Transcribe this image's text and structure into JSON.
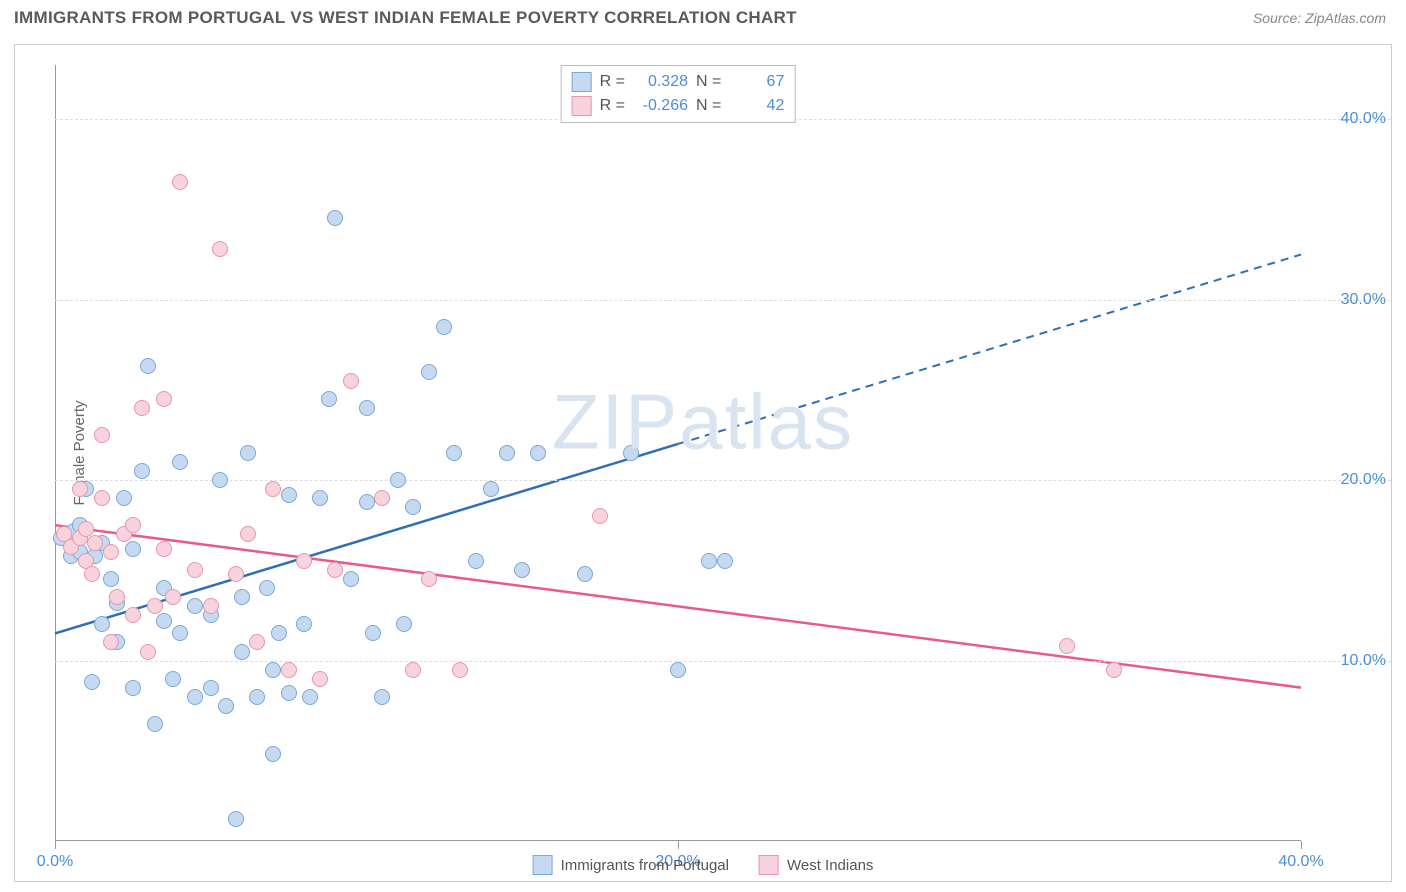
{
  "header": {
    "title": "IMMIGRANTS FROM PORTUGAL VS WEST INDIAN FEMALE POVERTY CORRELATION CHART",
    "source_label": "Source: ",
    "source_value": "ZipAtlas.com"
  },
  "watermark": {
    "prefix": "ZIP",
    "suffix": "atlas"
  },
  "chart": {
    "type": "scatter",
    "y_axis_title": "Female Poverty",
    "xlim": [
      0,
      40
    ],
    "ylim": [
      0,
      43
    ],
    "x_ticks": [
      0,
      20,
      40
    ],
    "x_tick_labels": [
      "0.0%",
      "20.0%",
      "40.0%"
    ],
    "y_ticks": [
      10,
      20,
      30,
      40
    ],
    "y_tick_labels": [
      "10.0%",
      "20.0%",
      "30.0%",
      "40.0%"
    ],
    "background_color": "#ffffff",
    "grid_color": "#dddddd",
    "axis_color": "#999999",
    "tick_label_color": "#4a8fd8",
    "marker_radius": 8,
    "series": [
      {
        "id": "portugal",
        "label": "Immigrants from Portugal",
        "fill": "#c5daf0",
        "stroke": "#7aa8d8",
        "line_color": "#2f6fb5",
        "R": "0.328",
        "N": "67",
        "trend": {
          "x1": 0,
          "y1": 11.5,
          "x2": 40,
          "y2": 32.5,
          "solid_until_x": 20
        },
        "points": [
          [
            0.2,
            16.8
          ],
          [
            0.5,
            15.8
          ],
          [
            0.6,
            17.2
          ],
          [
            0.8,
            16.0
          ],
          [
            0.8,
            17.5
          ],
          [
            1.0,
            19.5
          ],
          [
            1.2,
            8.8
          ],
          [
            1.3,
            15.8
          ],
          [
            1.5,
            12.0
          ],
          [
            1.5,
            16.5
          ],
          [
            1.8,
            14.5
          ],
          [
            2.0,
            11.0
          ],
          [
            2.0,
            13.2
          ],
          [
            2.2,
            19.0
          ],
          [
            2.5,
            8.5
          ],
          [
            2.5,
            16.2
          ],
          [
            2.8,
            20.5
          ],
          [
            3.0,
            26.3
          ],
          [
            3.2,
            6.5
          ],
          [
            3.5,
            12.2
          ],
          [
            3.5,
            14.0
          ],
          [
            3.8,
            9.0
          ],
          [
            4.0,
            11.5
          ],
          [
            4.0,
            21.0
          ],
          [
            4.5,
            8.0
          ],
          [
            4.5,
            13.0
          ],
          [
            5.0,
            8.5
          ],
          [
            5.0,
            12.5
          ],
          [
            5.3,
            20.0
          ],
          [
            5.5,
            7.5
          ],
          [
            5.8,
            1.2
          ],
          [
            6.0,
            10.5
          ],
          [
            6.0,
            13.5
          ],
          [
            6.2,
            21.5
          ],
          [
            6.5,
            8.0
          ],
          [
            6.8,
            14.0
          ],
          [
            7.0,
            4.8
          ],
          [
            7.0,
            9.5
          ],
          [
            7.2,
            11.5
          ],
          [
            7.5,
            8.2
          ],
          [
            7.5,
            19.2
          ],
          [
            8.0,
            12.0
          ],
          [
            8.2,
            8.0
          ],
          [
            8.5,
            19.0
          ],
          [
            8.8,
            24.5
          ],
          [
            9.0,
            34.5
          ],
          [
            9.5,
            14.5
          ],
          [
            10.0,
            18.8
          ],
          [
            10.0,
            24.0
          ],
          [
            10.2,
            11.5
          ],
          [
            10.5,
            8.0
          ],
          [
            11.0,
            20.0
          ],
          [
            11.2,
            12.0
          ],
          [
            11.5,
            18.5
          ],
          [
            12.0,
            26.0
          ],
          [
            12.5,
            28.5
          ],
          [
            12.8,
            21.5
          ],
          [
            13.5,
            15.5
          ],
          [
            14.0,
            19.5
          ],
          [
            14.5,
            21.5
          ],
          [
            15.0,
            15.0
          ],
          [
            15.5,
            21.5
          ],
          [
            17.0,
            14.8
          ],
          [
            18.5,
            21.5
          ],
          [
            20.0,
            9.5
          ],
          [
            21.0,
            15.5
          ],
          [
            21.5,
            15.5
          ]
        ]
      },
      {
        "id": "west_indians",
        "label": "West Indians",
        "fill": "#f7d3dd",
        "stroke": "#e896ab",
        "line_color": "#e75a8e",
        "R": "-0.266",
        "N": "42",
        "trend": {
          "x1": 0,
          "y1": 17.5,
          "x2": 40,
          "y2": 8.5,
          "solid_until_x": 40
        },
        "points": [
          [
            0.3,
            17.0
          ],
          [
            0.5,
            16.3
          ],
          [
            0.8,
            16.8
          ],
          [
            0.8,
            19.5
          ],
          [
            1.0,
            15.5
          ],
          [
            1.0,
            17.3
          ],
          [
            1.2,
            14.8
          ],
          [
            1.3,
            16.5
          ],
          [
            1.5,
            19.0
          ],
          [
            1.5,
            22.5
          ],
          [
            1.8,
            11.0
          ],
          [
            1.8,
            16.0
          ],
          [
            2.0,
            13.5
          ],
          [
            2.2,
            17.0
          ],
          [
            2.5,
            12.5
          ],
          [
            2.5,
            17.5
          ],
          [
            2.8,
            24.0
          ],
          [
            3.0,
            10.5
          ],
          [
            3.2,
            13.0
          ],
          [
            3.5,
            16.2
          ],
          [
            3.5,
            24.5
          ],
          [
            3.8,
            13.5
          ],
          [
            4.0,
            36.5
          ],
          [
            4.5,
            15.0
          ],
          [
            5.0,
            13.0
          ],
          [
            5.3,
            32.8
          ],
          [
            5.8,
            14.8
          ],
          [
            6.2,
            17.0
          ],
          [
            6.5,
            11.0
          ],
          [
            7.0,
            19.5
          ],
          [
            7.5,
            9.5
          ],
          [
            8.0,
            15.5
          ],
          [
            8.5,
            9.0
          ],
          [
            9.0,
            15.0
          ],
          [
            9.5,
            25.5
          ],
          [
            10.5,
            19.0
          ],
          [
            11.5,
            9.5
          ],
          [
            12.0,
            14.5
          ],
          [
            13.0,
            9.5
          ],
          [
            17.5,
            18.0
          ],
          [
            32.5,
            10.8
          ],
          [
            34.0,
            9.5
          ]
        ]
      }
    ]
  },
  "legend_top": {
    "R_label": "R  =",
    "N_label": "N  ="
  }
}
